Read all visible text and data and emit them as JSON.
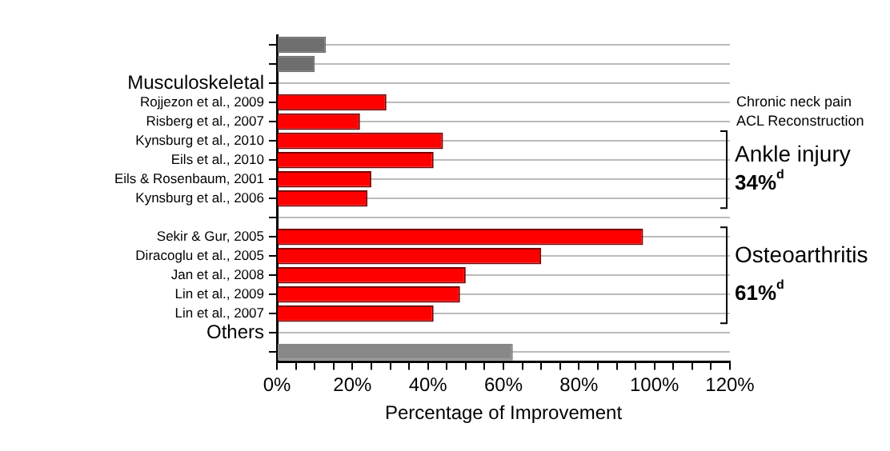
{
  "chart_data": {
    "type": "bar",
    "orientation": "horizontal",
    "categories": [
      null,
      null,
      "Musculoskeletal",
      "Rojjezon et al., 2009",
      "Risberg et al., 2007",
      "Kynsburg et al., 2010",
      "Eils et al., 2010",
      "Eils & Rosenbaum, 2001",
      "Kynsburg et al., 2006",
      null,
      "Sekir & Gur, 2005",
      "Diracoglu et al., 2005",
      "Jan et al., 2008",
      "Lin et al., 2009",
      "Lin et al., 2007",
      "Others",
      null
    ],
    "values": [
      13,
      10,
      null,
      29,
      22,
      44,
      41.5,
      25,
      24,
      null,
      97,
      70,
      50,
      48.5,
      41.5,
      null,
      62.5
    ],
    "colors": [
      "#6e6e6e",
      "#6e6e6e",
      "#ff0000",
      "#ff0000",
      "#ff0000",
      "#ff0000",
      "#ff0000",
      "#ff0000",
      "#ff0000",
      "#ff0000",
      "#ff0000",
      "#ff0000",
      "#ff0000",
      "#ff0000",
      "#ff0000",
      "#888888",
      "#888888"
    ],
    "xlabel": "Percentage of Improvement",
    "xlim": [
      0,
      120
    ],
    "xticks": [
      {
        "value": 0,
        "label": "0%"
      },
      {
        "value": 5,
        "label": null
      },
      {
        "value": 10,
        "label": null
      },
      {
        "value": 15,
        "label": null
      },
      {
        "value": 20,
        "label": "20%"
      },
      {
        "value": 25,
        "label": null
      },
      {
        "value": 30,
        "label": null
      },
      {
        "value": 35,
        "label": null
      },
      {
        "value": 40,
        "label": "40%"
      },
      {
        "value": 45,
        "label": null
      },
      {
        "value": 50,
        "label": null
      },
      {
        "value": 55,
        "label": null
      },
      {
        "value": 60,
        "label": "60%"
      },
      {
        "value": 65,
        "label": null
      },
      {
        "value": 70,
        "label": null
      },
      {
        "value": 75,
        "label": null
      },
      {
        "value": 80,
        "label": "80%"
      },
      {
        "value": 85,
        "label": null
      },
      {
        "value": 90,
        "label": null
      },
      {
        "value": 95,
        "label": null
      },
      {
        "value": 100,
        "label": "100%"
      },
      {
        "value": 105,
        "label": null
      },
      {
        "value": 110,
        "label": null
      },
      {
        "value": 115,
        "label": null
      },
      {
        "value": 120,
        "label": "120%"
      }
    ],
    "grid": "y",
    "legend": false,
    "annotations": [
      "Chronic neck pain",
      "ACL Reconstruction",
      "Ankle injury",
      "34%$^{d}$",
      "Osteoarthritis",
      "61%$^{d}$"
    ]
  }
}
